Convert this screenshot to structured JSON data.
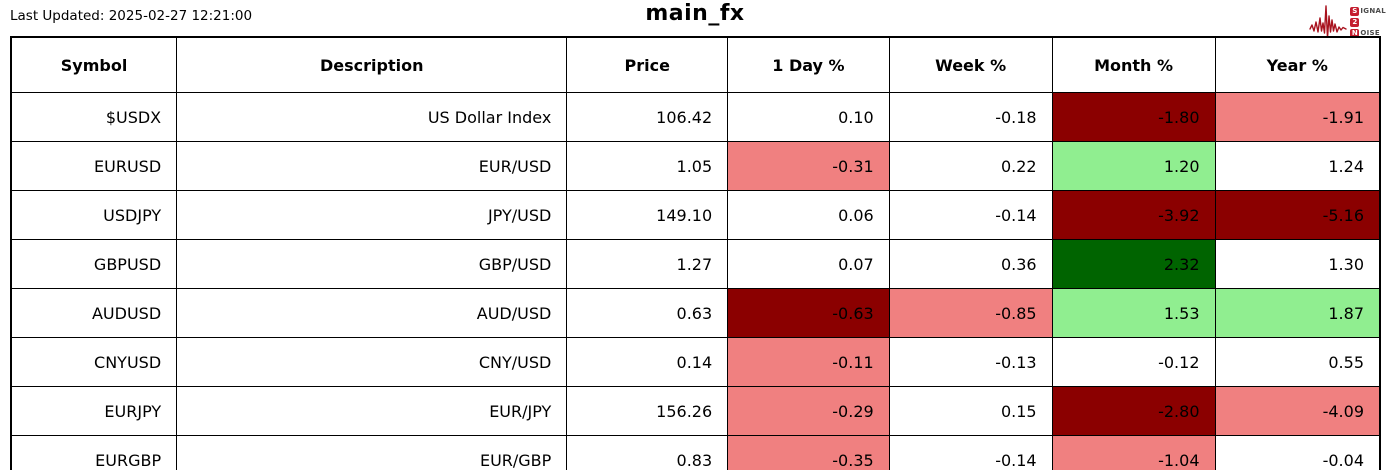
{
  "header": {
    "last_updated": "Last Updated: 2025-02-27 12:21:00",
    "title": "main_fx",
    "logo": {
      "signal_initial": "S",
      "signal_rest": "IGNAL",
      "middle": "2",
      "noise_initial": "N",
      "noise_rest": "OISE",
      "waveform_icon": "waveform-icon"
    }
  },
  "colors": {
    "neutral": "#FFFFFF",
    "mild_negative": "#F08080",
    "strong_negative": "#8B0000",
    "mild_positive": "#90EE90",
    "strong_positive": "#006400",
    "logo_red": "#C41E2F",
    "waveform_red": "#A8121E",
    "border_black": "#000000"
  },
  "chart_data": {
    "type": "table",
    "title": "main_fx",
    "columns": [
      "Symbol",
      "Description",
      "Price",
      "1 Day %",
      "Week %",
      "Month %",
      "Year %"
    ],
    "column_keys": [
      "symbol",
      "description",
      "price",
      "day-pct",
      "week-pct",
      "month-pct",
      "year-pct"
    ],
    "rows": [
      {
        "cells": [
          {
            "text": "$USDX"
          },
          {
            "text": "US Dollar Index"
          },
          {
            "text": "106.42"
          },
          {
            "text": "0.10",
            "bg": "neutral"
          },
          {
            "text": "-0.18",
            "bg": "neutral"
          },
          {
            "text": "-1.80",
            "bg": "strong_negative"
          },
          {
            "text": "-1.91",
            "bg": "mild_negative"
          }
        ]
      },
      {
        "cells": [
          {
            "text": "EURUSD"
          },
          {
            "text": "EUR/USD"
          },
          {
            "text": "1.05"
          },
          {
            "text": "-0.31",
            "bg": "mild_negative"
          },
          {
            "text": "0.22",
            "bg": "neutral"
          },
          {
            "text": "1.20",
            "bg": "mild_positive"
          },
          {
            "text": "1.24",
            "bg": "neutral"
          }
        ]
      },
      {
        "cells": [
          {
            "text": "USDJPY"
          },
          {
            "text": "JPY/USD"
          },
          {
            "text": "149.10"
          },
          {
            "text": "0.06",
            "bg": "neutral"
          },
          {
            "text": "-0.14",
            "bg": "neutral"
          },
          {
            "text": "-3.92",
            "bg": "strong_negative"
          },
          {
            "text": "-5.16",
            "bg": "strong_negative"
          }
        ]
      },
      {
        "cells": [
          {
            "text": "GBPUSD"
          },
          {
            "text": "GBP/USD"
          },
          {
            "text": "1.27"
          },
          {
            "text": "0.07",
            "bg": "neutral"
          },
          {
            "text": "0.36",
            "bg": "neutral"
          },
          {
            "text": "2.32",
            "bg": "strong_positive"
          },
          {
            "text": "1.30",
            "bg": "neutral"
          }
        ]
      },
      {
        "cells": [
          {
            "text": "AUDUSD"
          },
          {
            "text": "AUD/USD"
          },
          {
            "text": "0.63"
          },
          {
            "text": "-0.63",
            "bg": "strong_negative"
          },
          {
            "text": "-0.85",
            "bg": "mild_negative"
          },
          {
            "text": "1.53",
            "bg": "mild_positive"
          },
          {
            "text": "1.87",
            "bg": "mild_positive"
          }
        ]
      },
      {
        "cells": [
          {
            "text": "CNYUSD"
          },
          {
            "text": "CNY/USD"
          },
          {
            "text": "0.14"
          },
          {
            "text": "-0.11",
            "bg": "mild_negative"
          },
          {
            "text": "-0.13",
            "bg": "neutral"
          },
          {
            "text": "-0.12",
            "bg": "neutral"
          },
          {
            "text": "0.55",
            "bg": "neutral"
          }
        ]
      },
      {
        "cells": [
          {
            "text": "EURJPY"
          },
          {
            "text": "EUR/JPY"
          },
          {
            "text": "156.26"
          },
          {
            "text": "-0.29",
            "bg": "mild_negative"
          },
          {
            "text": "0.15",
            "bg": "neutral"
          },
          {
            "text": "-2.80",
            "bg": "strong_negative"
          },
          {
            "text": "-4.09",
            "bg": "mild_negative"
          }
        ]
      },
      {
        "cells": [
          {
            "text": "EURGBP"
          },
          {
            "text": "EUR/GBP"
          },
          {
            "text": "0.83"
          },
          {
            "text": "-0.35",
            "bg": "mild_negative"
          },
          {
            "text": "-0.14",
            "bg": "neutral"
          },
          {
            "text": "-1.04",
            "bg": "mild_negative"
          },
          {
            "text": "-0.04",
            "bg": "neutral"
          }
        ]
      }
    ]
  }
}
